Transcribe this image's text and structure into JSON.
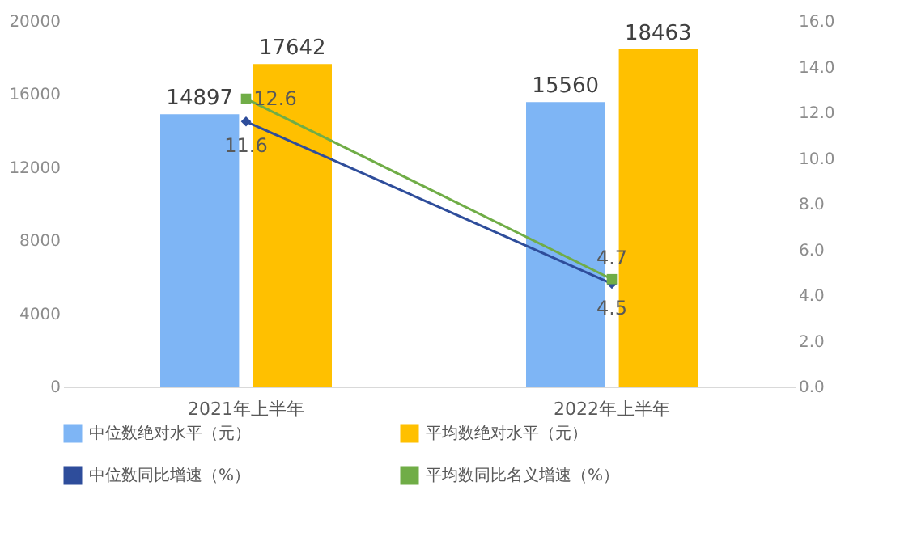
{
  "chart_data": {
    "type": "bar",
    "categories": [
      "2021年上半年",
      "2022年上半年"
    ],
    "series": [
      {
        "name": "中位数绝对水平（元）",
        "color": "#7eb5f5",
        "values": [
          14897,
          15560
        ]
      },
      {
        "name": "平均数绝对水平（元）",
        "color": "#ffc000",
        "values": [
          17642,
          18463
        ]
      },
      {
        "name": "中位数同比增速（%）",
        "type": "line",
        "axis": "y2",
        "marker": "diamond",
        "color": "#2e4d9b",
        "values": [
          11.6,
          4.5
        ]
      },
      {
        "name": "平均数同比名义增速（%）",
        "type": "line",
        "axis": "y2",
        "marker": "square",
        "color": "#70ad47",
        "values": [
          12.6,
          4.7
        ]
      }
    ],
    "ylim": [
      0,
      20000
    ],
    "yticks": [
      0,
      4000,
      8000,
      12000,
      16000,
      20000
    ],
    "y2lim": [
      0,
      16
    ],
    "y2ticks": [
      {
        "value": 0,
        "label": "0.0"
      },
      {
        "value": 2,
        "label": "2.0"
      },
      {
        "value": 4,
        "label": "4.0"
      },
      {
        "value": 6,
        "label": "6.0"
      },
      {
        "value": 8,
        "label": "8.0"
      },
      {
        "value": 10,
        "label": "10.0"
      },
      {
        "value": 12,
        "label": "12.0"
      },
      {
        "value": 14,
        "label": "14.0"
      },
      {
        "value": 16,
        "label": "16.0"
      }
    ],
    "data_labels": true,
    "grid": false,
    "legend": "bottom"
  }
}
